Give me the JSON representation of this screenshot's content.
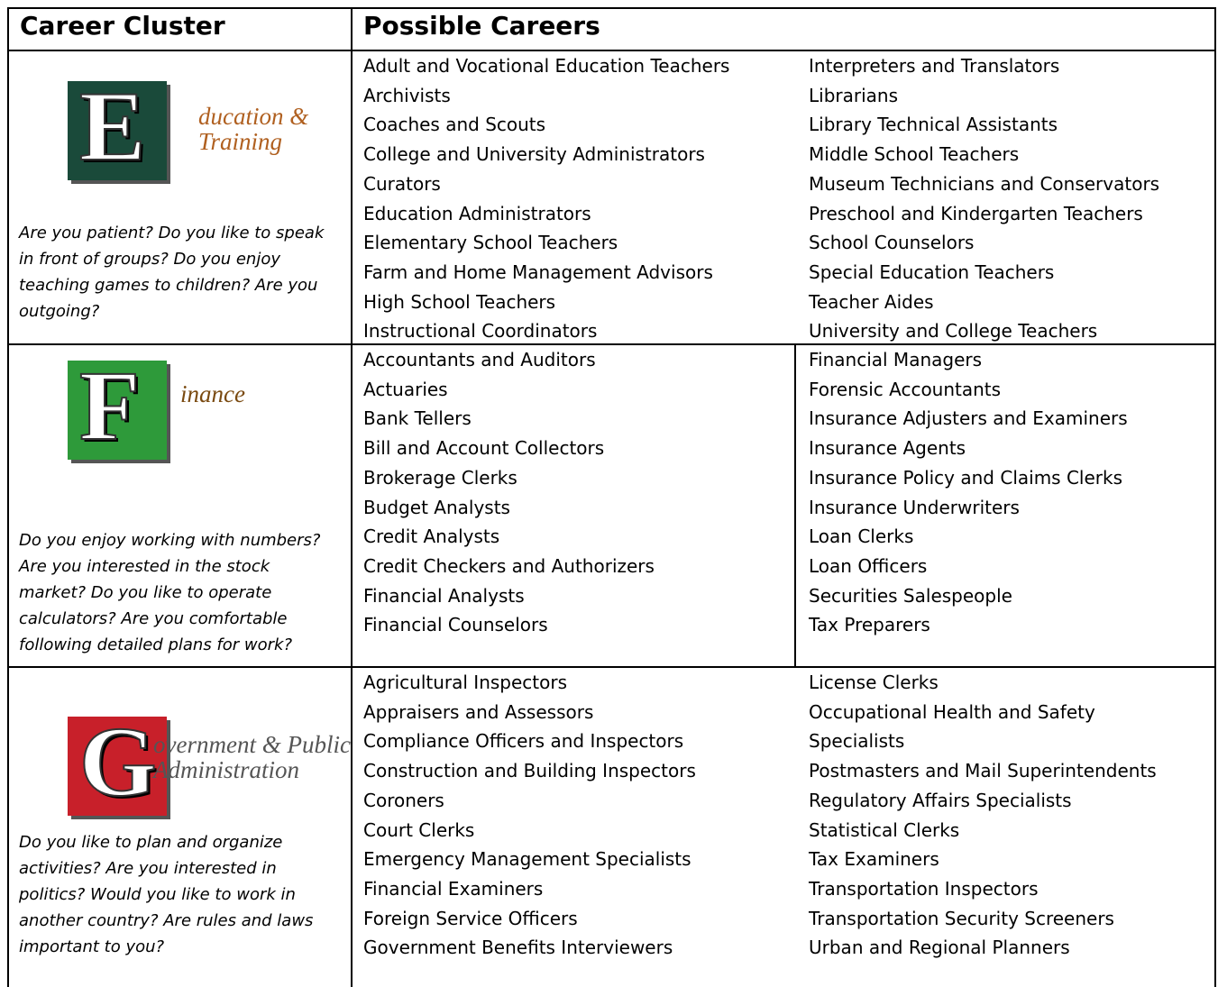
{
  "table": {
    "header": [
      "Career Cluster",
      "Possible Careers"
    ],
    "rows": [
      {
        "logo": {
          "letter": "E",
          "lines": [
            "ducation &",
            "Training"
          ]
        },
        "question": "Are you patient? Do you like to speak in front of groups? Do you enjoy teaching games to children? Are you outgoing?",
        "careers": [
          [
            "Adult and Vocational Education Teachers",
            "Archivists",
            "Coaches and Scouts",
            "College and University Administrators",
            "Curators",
            "Education Administrators",
            "Elementary School Teachers",
            "Farm and Home Management Advisors",
            "High School Teachers",
            "Instructional Coordinators"
          ],
          [
            "Interpreters and Translators",
            "Librarians",
            "Library Technical Assistants",
            "Middle School Teachers",
            "Museum Technicians and Conservators",
            "Preschool and Kindergarten Teachers",
            "School Counselors",
            "Special Education Teachers",
            "Teacher Aides",
            "University and College Teachers"
          ]
        ]
      },
      {
        "logo": {
          "letter": "F",
          "lines": [
            "inance"
          ]
        },
        "question": "Do you enjoy working with numbers? Are you interested in the stock market? Do you like to operate calculators? Are you comfortable following detailed plans for work?",
        "careers": [
          [
            "Accountants and Auditors",
            "Actuaries",
            "Bank Tellers",
            "Bill and Account Collectors",
            "Brokerage Clerks",
            "Budget Analysts",
            "Credit Analysts",
            "Credit Checkers and Authorizers",
            "Financial Analysts",
            "Financial Counselors"
          ],
          [
            "Financial Managers",
            "Forensic Accountants",
            "Insurance Adjusters and Examiners",
            "Insurance Agents",
            "Insurance Policy and Claims Clerks",
            "Insurance Underwriters",
            "Loan Clerks",
            "Loan Officers",
            "Securities Salespeople",
            "Tax Preparers"
          ]
        ]
      },
      {
        "logo": {
          "letter": "G",
          "lines": [
            "overnment & Public",
            "Administration"
          ]
        },
        "question": "Do you like to plan and organize activities? Are you interested in politics? Would you like to work in another country? Are rules and laws important to you?",
        "careers": [
          [
            "Agricultural Inspectors",
            "Appraisers and Assessors",
            "Compliance Officers and Inspectors",
            "Construction and Building Inspectors",
            "Coroners",
            "Court Clerks",
            "Emergency Management Specialists",
            "Financial Examiners",
            "Foreign Service Officers",
            "Government Benefits Interviewers"
          ],
          [
            "License Clerks",
            "Occupational Health and Safety",
            "Specialists",
            "Postmasters and Mail Superintendents",
            "Regulatory Affairs Specialists",
            "Statistical Clerks",
            "Tax Examiners",
            "Transportation Inspectors",
            "Transportation Security Screeners",
            "Urban and Regional Planners"
          ]
        ]
      }
    ]
  }
}
